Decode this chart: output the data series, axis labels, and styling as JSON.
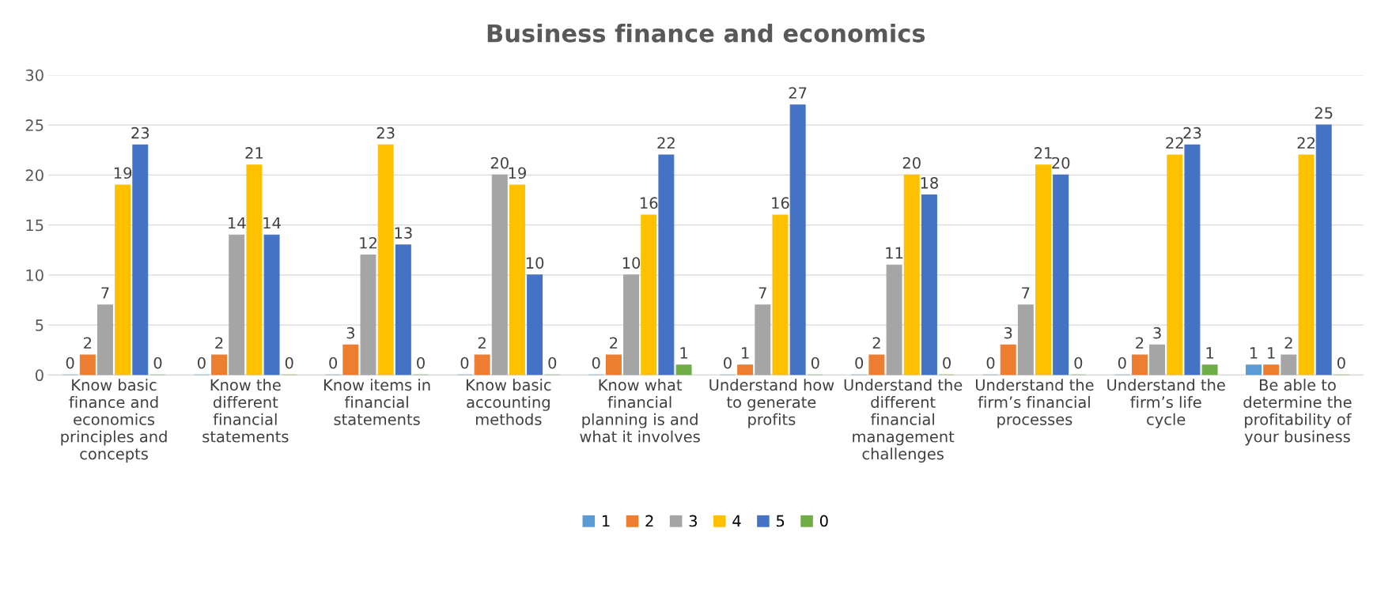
{
  "chart_data": {
    "type": "bar",
    "title": "Business finance and economics",
    "categories": [
      "Know basic finance and economics principles and concepts",
      "Know the different financial statements",
      "Know items in financial statements",
      "Know basic accounting methods",
      "Know what financial planning is and what it involves",
      "Understand how to generate profits",
      "Understand the different financial management challenges",
      "Understand the firm’s financial processes",
      "Understand the firm’s life cycle",
      "Be able to determine the profitability of your business"
    ],
    "series": [
      {
        "name": "1",
        "color": "#5b9bd5",
        "values": [
          0,
          0,
          0,
          0,
          0,
          0,
          0,
          0,
          0,
          1
        ]
      },
      {
        "name": "2",
        "color": "#ed7d31",
        "values": [
          2,
          2,
          3,
          2,
          2,
          1,
          2,
          3,
          2,
          1
        ]
      },
      {
        "name": "3",
        "color": "#a5a5a5",
        "values": [
          7,
          14,
          12,
          20,
          10,
          7,
          11,
          7,
          3,
          2
        ]
      },
      {
        "name": "4",
        "color": "#ffc000",
        "values": [
          19,
          21,
          23,
          19,
          16,
          16,
          20,
          21,
          22,
          22
        ]
      },
      {
        "name": "5",
        "color": "#4472c4",
        "values": [
          23,
          14,
          13,
          10,
          22,
          27,
          18,
          20,
          23,
          25
        ]
      },
      {
        "name": "0",
        "color": "#70ad47",
        "values": [
          0,
          0,
          0,
          0,
          1,
          0,
          0,
          0,
          1,
          0
        ]
      }
    ],
    "ylim": [
      0,
      30
    ],
    "yticks": [
      0,
      5,
      10,
      15,
      20,
      25,
      30
    ],
    "grid": "y",
    "legend": "bottom",
    "data_labels": true
  }
}
